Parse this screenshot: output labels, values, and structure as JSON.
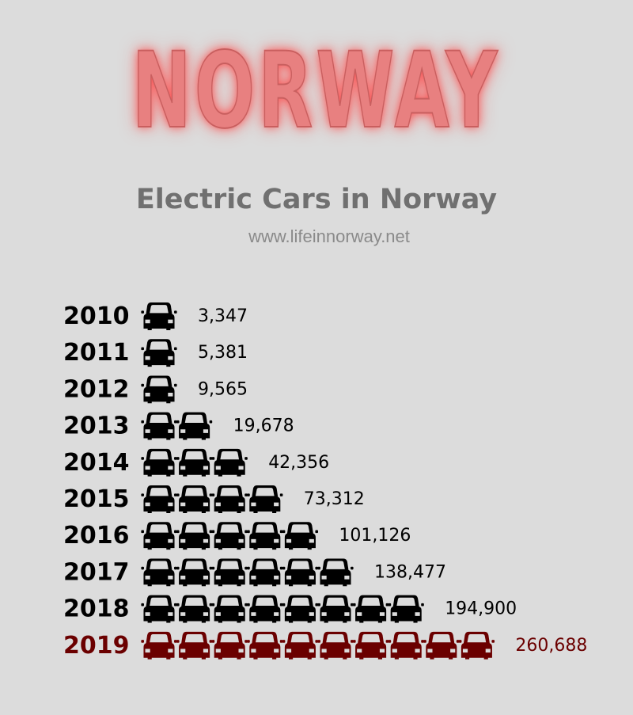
{
  "header": {
    "brand": "NORWAY",
    "title": "Electric Cars in Norway",
    "source": "www.lifeinnorway.net"
  },
  "colors": {
    "background": "#dcdcdc",
    "brand": "#e88080",
    "default_bar": "#000000",
    "highlight": "#6b0000",
    "title": "#707070"
  },
  "icons": {
    "unit": "car-icon"
  },
  "chart_data": {
    "type": "bar",
    "orientation": "horizontal",
    "mark": "pictogram",
    "categories": [
      "2010",
      "2011",
      "2012",
      "2013",
      "2014",
      "2015",
      "2016",
      "2017",
      "2018",
      "2019"
    ],
    "values": [
      3347,
      5381,
      9565,
      19678,
      42356,
      73312,
      101126,
      138477,
      194900,
      260688
    ],
    "value_labels": [
      "3,347",
      "5,381",
      "9,565",
      "19,678",
      "42,356",
      "73,312",
      "101,126",
      "138,477",
      "194,900",
      "260,688"
    ],
    "icon_counts": [
      1,
      1,
      1,
      2,
      3,
      4,
      5,
      6,
      8,
      10
    ],
    "highlight_category": "2019",
    "title": "Electric Cars in Norway",
    "xlabel": "",
    "ylabel": "",
    "grid": false,
    "legend": "none"
  }
}
